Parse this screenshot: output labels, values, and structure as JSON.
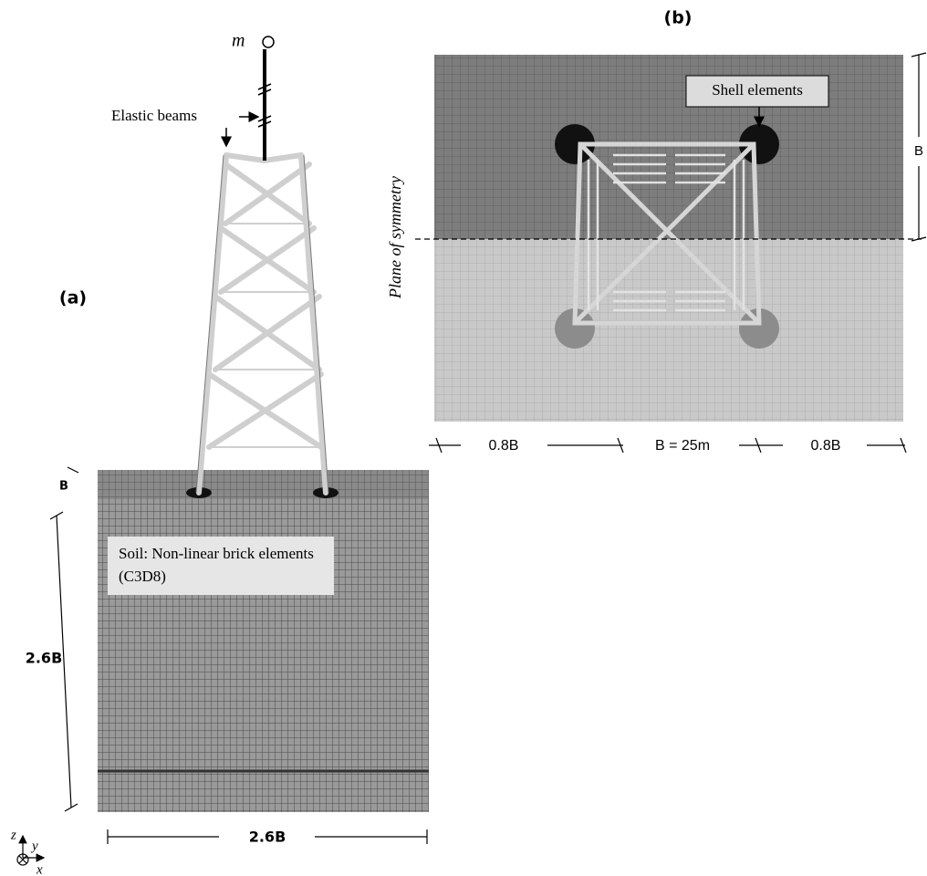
{
  "panel_a": {
    "label": "(a)",
    "mass_label": "m",
    "beam_label": "Elastic beams",
    "soil_label": "Soil: Non-linear brick elements (C3D8)",
    "depth_dim": "B",
    "height_dim": "2.6B",
    "width_dim": "2.6B"
  },
  "panel_b": {
    "label": "(b)",
    "shell_label": "Shell elements",
    "symmetry_label": "Plane of symmetry",
    "half_width_dim": "B",
    "bottom_dims": [
      "0.8B",
      "B = 25m",
      "0.8B"
    ]
  },
  "axes": {
    "z": "z",
    "y": "y",
    "x": "x"
  }
}
